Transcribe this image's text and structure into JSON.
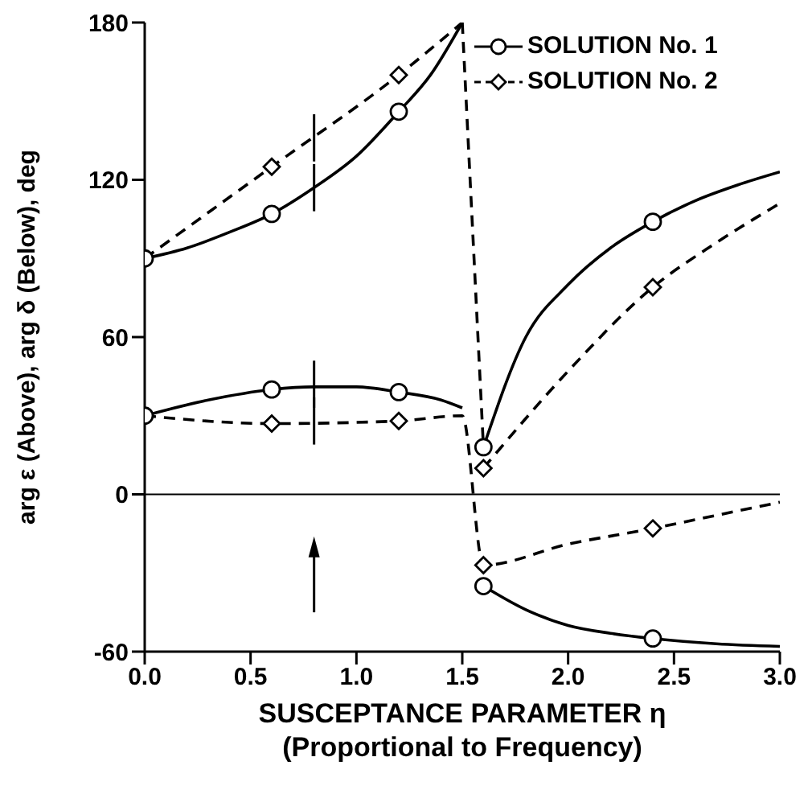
{
  "chart_data": {
    "type": "line",
    "xlabel": "SUSCEPTANCE PARAMETER η\n(Proportional to Frequency)",
    "ylabel": "arg ε (Above), arg δ (Below), deg",
    "xlim": [
      0,
      3
    ],
    "xticks": [
      {
        "value": 0,
        "label": "0.0"
      },
      {
        "value": 0.5,
        "label": "0.5"
      },
      {
        "value": 1,
        "label": "1.0"
      },
      {
        "value": 1.5,
        "label": "1.5"
      },
      {
        "value": 2,
        "label": "2.0"
      },
      {
        "value": 2.5,
        "label": "2.5"
      },
      {
        "value": 3,
        "label": "3.0"
      }
    ],
    "ylim": [
      -60,
      180
    ],
    "yticks": [
      -60,
      0,
      60,
      120,
      180
    ],
    "grid": false,
    "legend": "top right",
    "ref_lines": [
      {
        "axis": "y",
        "value": 0,
        "color": "#000000"
      }
    ],
    "series": [
      {
        "color": "#000000",
        "line_style": "solid",
        "marker": "none",
        "x": [
          0,
          0.2,
          0.4,
          0.6,
          0.8,
          1.0,
          1.2,
          1.35,
          1.5
        ],
        "values": [
          90,
          94,
          100,
          107,
          117,
          129,
          146,
          160,
          180
        ]
      },
      {
        "color": "#000000",
        "line_style": "dashed",
        "marker": "none",
        "x": [
          0,
          0.6,
          1.2,
          1.5
        ],
        "values": [
          90,
          125,
          160,
          180
        ]
      },
      {
        "color": "#000000",
        "line_style": "solid",
        "marker": "none",
        "x": [
          0,
          0.3,
          0.6,
          0.8,
          1.0,
          1.2,
          1.4,
          1.5
        ],
        "values": [
          30,
          36,
          40,
          41,
          41,
          39,
          36,
          33
        ]
      },
      {
        "color": "#000000",
        "line_style": "dashed",
        "marker": "none",
        "x": [
          0,
          0.6,
          1.2,
          1.5,
          1.6,
          2.0,
          2.4,
          2.7,
          3.0
        ],
        "values": [
          30,
          27,
          28,
          30,
          -27,
          -19,
          -13,
          -8,
          -3
        ]
      },
      {
        "color": "#000000",
        "line_style": "dashed",
        "marker": "none",
        "x": [
          1.5,
          1.6
        ],
        "values": [
          180,
          18
        ]
      },
      {
        "color": "#000000",
        "line_style": "solid",
        "marker": "none",
        "x": [
          1.6,
          1.8,
          2.0,
          2.2,
          2.4,
          2.6,
          2.8,
          3.0
        ],
        "values": [
          18,
          60,
          80,
          94,
          104,
          112,
          118,
          123
        ]
      },
      {
        "color": "#000000",
        "line_style": "dashed",
        "marker": "none",
        "x": [
          1.6,
          2.0,
          2.4,
          2.7,
          3.0
        ],
        "values": [
          10,
          47,
          79,
          96,
          111
        ]
      },
      {
        "color": "#000000",
        "line_style": "solid",
        "marker": "none",
        "x": [
          1.6,
          1.8,
          2.0,
          2.2,
          2.4,
          2.7,
          3.0
        ],
        "values": [
          -35,
          -44,
          -50,
          -53,
          -55,
          -57,
          -58
        ]
      },
      {
        "type": "scatter",
        "name": "SOLUTION No. 1",
        "color": "#000000",
        "line_style": "solid",
        "marker": "circle",
        "x": [
          0,
          0.6,
          1.2,
          0,
          0.6,
          1.2,
          1.6,
          2.4,
          1.6,
          2.4
        ],
        "values": [
          90,
          107,
          146,
          30,
          40,
          39,
          18,
          104,
          -35,
          -55
        ]
      },
      {
        "type": "scatter",
        "name": "SOLUTION No. 2",
        "color": "#000000",
        "line_style": "dashed",
        "marker": "diamond",
        "x": [
          0.6,
          1.2,
          0.6,
          1.2,
          1.6,
          2.4,
          1.6,
          2.4
        ],
        "values": [
          125,
          160,
          27,
          28,
          10,
          79,
          -27,
          -13
        ]
      }
    ]
  }
}
